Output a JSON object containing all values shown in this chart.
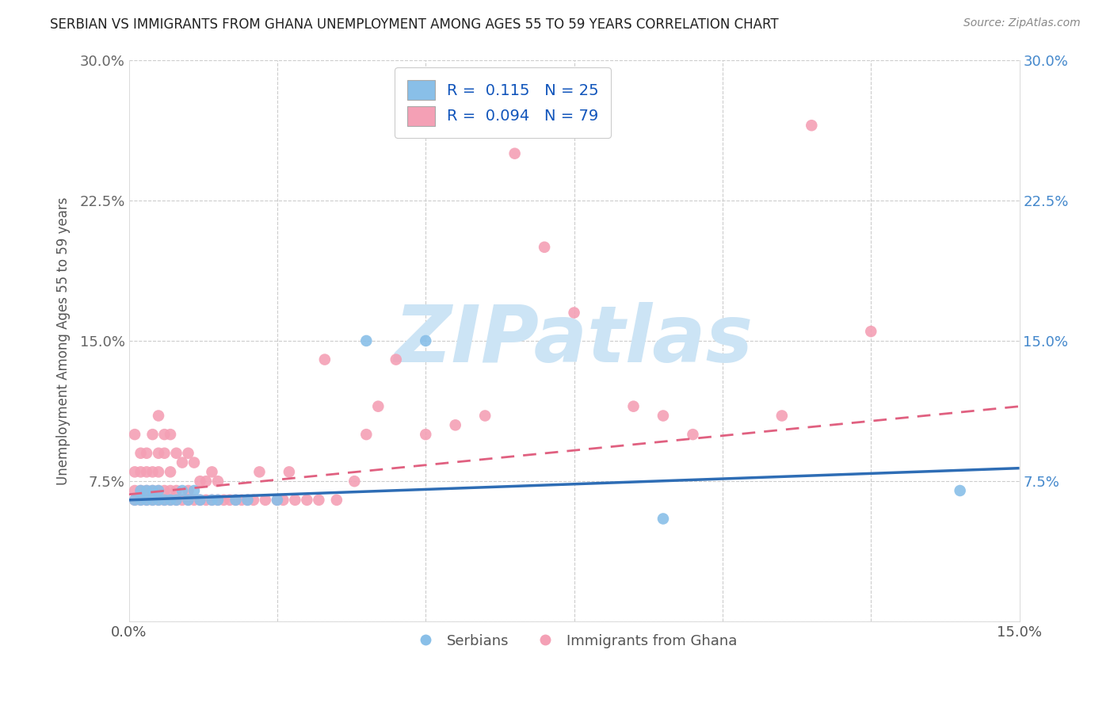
{
  "title": "SERBIAN VS IMMIGRANTS FROM GHANA UNEMPLOYMENT AMONG AGES 55 TO 59 YEARS CORRELATION CHART",
  "source": "Source: ZipAtlas.com",
  "ylabel": "Unemployment Among Ages 55 to 59 years",
  "xlim": [
    0,
    0.15
  ],
  "ylim": [
    0,
    0.3
  ],
  "watermark": "ZIPatlas",
  "watermark_color": "#cce4f5",
  "blue_color": "#89bfe8",
  "pink_color": "#f4a0b5",
  "legend_blue_R": "0.115",
  "legend_blue_N": "25",
  "legend_pink_R": "0.094",
  "legend_pink_N": "79",
  "legend_label_blue": "Serbians",
  "legend_label_pink": "Immigrants from Ghana",
  "serbian_x": [
    0.001,
    0.002,
    0.002,
    0.003,
    0.003,
    0.004,
    0.004,
    0.005,
    0.005,
    0.006,
    0.007,
    0.008,
    0.009,
    0.01,
    0.011,
    0.012,
    0.014,
    0.015,
    0.018,
    0.02,
    0.025,
    0.04,
    0.05,
    0.09,
    0.14
  ],
  "serbian_y": [
    0.065,
    0.065,
    0.07,
    0.065,
    0.07,
    0.065,
    0.07,
    0.065,
    0.07,
    0.065,
    0.065,
    0.065,
    0.07,
    0.065,
    0.07,
    0.065,
    0.065,
    0.065,
    0.065,
    0.065,
    0.065,
    0.15,
    0.15,
    0.055,
    0.07
  ],
  "ghana_x": [
    0.001,
    0.001,
    0.001,
    0.001,
    0.002,
    0.002,
    0.002,
    0.002,
    0.003,
    0.003,
    0.003,
    0.003,
    0.004,
    0.004,
    0.004,
    0.004,
    0.005,
    0.005,
    0.005,
    0.005,
    0.005,
    0.006,
    0.006,
    0.006,
    0.006,
    0.007,
    0.007,
    0.007,
    0.007,
    0.008,
    0.008,
    0.008,
    0.009,
    0.009,
    0.01,
    0.01,
    0.01,
    0.011,
    0.011,
    0.012,
    0.012,
    0.013,
    0.013,
    0.014,
    0.014,
    0.015,
    0.015,
    0.016,
    0.017,
    0.018,
    0.019,
    0.02,
    0.021,
    0.022,
    0.023,
    0.025,
    0.026,
    0.027,
    0.028,
    0.03,
    0.032,
    0.033,
    0.035,
    0.038,
    0.04,
    0.042,
    0.045,
    0.05,
    0.055,
    0.06,
    0.065,
    0.07,
    0.075,
    0.085,
    0.09,
    0.095,
    0.11,
    0.115,
    0.125
  ],
  "ghana_y": [
    0.065,
    0.07,
    0.08,
    0.1,
    0.065,
    0.07,
    0.08,
    0.09,
    0.065,
    0.07,
    0.08,
    0.09,
    0.065,
    0.07,
    0.08,
    0.1,
    0.065,
    0.07,
    0.08,
    0.09,
    0.11,
    0.065,
    0.07,
    0.09,
    0.1,
    0.065,
    0.07,
    0.08,
    0.1,
    0.065,
    0.07,
    0.09,
    0.065,
    0.085,
    0.065,
    0.07,
    0.09,
    0.065,
    0.085,
    0.065,
    0.075,
    0.065,
    0.075,
    0.065,
    0.08,
    0.065,
    0.075,
    0.065,
    0.065,
    0.065,
    0.065,
    0.065,
    0.065,
    0.08,
    0.065,
    0.065,
    0.065,
    0.08,
    0.065,
    0.065,
    0.065,
    0.14,
    0.065,
    0.075,
    0.1,
    0.115,
    0.14,
    0.1,
    0.105,
    0.11,
    0.25,
    0.2,
    0.165,
    0.115,
    0.11,
    0.1,
    0.11,
    0.265,
    0.155
  ],
  "blue_trend_start": 0.065,
  "blue_trend_end": 0.082,
  "pink_trend_start": 0.068,
  "pink_trend_end": 0.115
}
